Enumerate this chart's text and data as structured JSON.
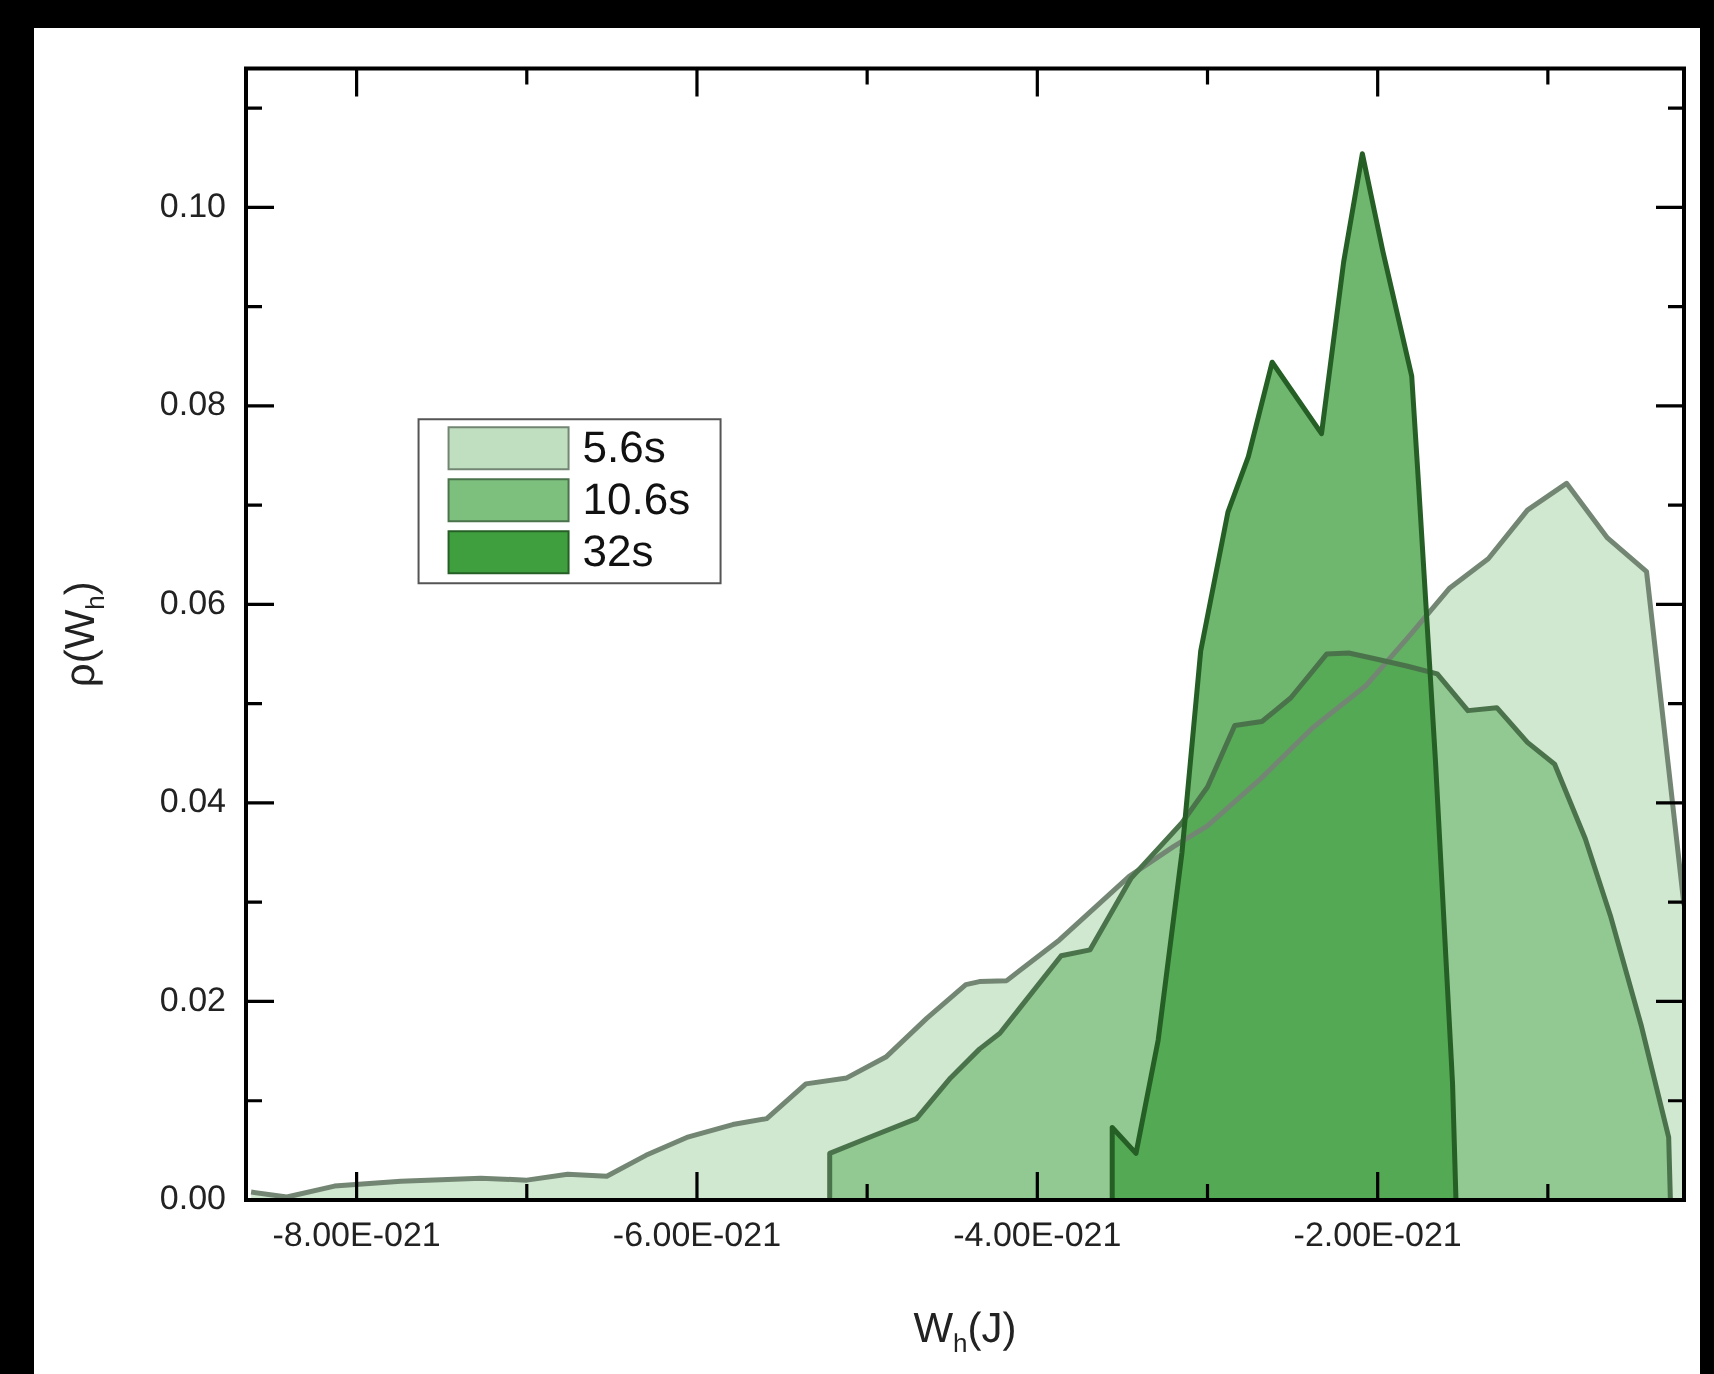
{
  "chart_data": {
    "type": "area",
    "xlabel": "W$_{h}$(J)",
    "ylabel": "ρ(W$_{h}$)",
    "xlim": [
      -8.65e-21,
      -2e-22
    ],
    "ylim": [
      0,
      0.114
    ],
    "xticks": [
      {
        "value": -8e-21,
        "label": "-8.00E-021"
      },
      {
        "value": -7e-21,
        "label": null
      },
      {
        "value": -6e-21,
        "label": "-6.00E-021"
      },
      {
        "value": -5e-21,
        "label": null
      },
      {
        "value": -4e-21,
        "label": "-4.00E-021"
      },
      {
        "value": -3e-21,
        "label": null
      },
      {
        "value": -2e-21,
        "label": "-2.00E-021"
      },
      {
        "value": -1e-21,
        "label": null
      }
    ],
    "yticks": [
      {
        "value": 0,
        "label": "0.00"
      },
      {
        "value": 0.01,
        "label": null
      },
      {
        "value": 0.02,
        "label": "0.02"
      },
      {
        "value": 0.03,
        "label": null
      },
      {
        "value": 0.04,
        "label": "0.04"
      },
      {
        "value": 0.05,
        "label": null
      },
      {
        "value": 0.06,
        "label": "0.06"
      },
      {
        "value": 0.07,
        "label": null
      },
      {
        "value": 0.08,
        "label": "0.08"
      },
      {
        "value": 0.09,
        "label": null
      },
      {
        "value": 0.1,
        "label": "0.10"
      },
      {
        "value": 0.11,
        "label": null
      }
    ],
    "grid": false,
    "legend": "left",
    "marker": "none",
    "line_style": "solid",
    "series": [
      {
        "name": "5.6s",
        "color": "#c0dfc0",
        "x": [
          -8.62e-21,
          -8.41e-21,
          -8.13e-21,
          -7.74e-21,
          -7.27e-21,
          -7e-21,
          -6.76e-21,
          -6.53e-21,
          -6.3e-21,
          -6.06e-21,
          -5.79e-21,
          -5.59e-21,
          -5.36e-21,
          -5.12e-21,
          -4.89e-21,
          -4.65e-21,
          -4.42e-21,
          -4.34e-21,
          -4.18e-21,
          -3.87e-21,
          -3.46e-21,
          -3.2e-21,
          -3e-21,
          -2.69e-21,
          -2.38e-21,
          -2.07e-21,
          -1.81e-21,
          -1.58e-21,
          -1.35e-21,
          -1.12e-21,
          -8.9e-22,
          -6.5e-22,
          -4.2e-22,
          -2e-22
        ],
        "values": [
          0.0008,
          0.0003,
          0.0014,
          0.0019,
          0.0022,
          0.002,
          0.0026,
          0.0024,
          0.0045,
          0.0063,
          0.0076,
          0.0082,
          0.0117,
          0.0123,
          0.0144,
          0.0183,
          0.0217,
          0.022,
          0.0221,
          0.0262,
          0.0326,
          0.0356,
          0.0377,
          0.0424,
          0.0476,
          0.0518,
          0.0569,
          0.0616,
          0.0646,
          0.0695,
          0.0722,
          0.0667,
          0.0633,
          0.0297
        ]
      },
      {
        "name": "10.6s",
        "color": "#7dbf7d",
        "x": [
          -5.22e-21,
          -5.22e-21,
          -4.96e-21,
          -4.71e-21,
          -4.51e-21,
          -4.34e-21,
          -4.22e-21,
          -3.86e-21,
          -3.69e-21,
          -3.45e-21,
          -3.15e-21,
          -3e-21,
          -2.84e-21,
          -2.68e-21,
          -2.51e-21,
          -2.3e-21,
          -2.17e-21,
          -2.01e-21,
          -1.83e-21,
          -1.65e-21,
          -1.47e-21,
          -1.3e-21,
          -1.12e-21,
          -9.6e-22,
          -7.8e-22,
          -6.3e-22,
          -4.5e-22,
          -2.9e-22,
          -2.8e-22
        ],
        "values": [
          0,
          0.0047,
          0.0065,
          0.0082,
          0.0123,
          0.0152,
          0.0168,
          0.0246,
          0.0252,
          0.0324,
          0.038,
          0.0416,
          0.0478,
          0.0482,
          0.0506,
          0.055,
          0.0551,
          0.0545,
          0.0538,
          0.053,
          0.0493,
          0.0496,
          0.0461,
          0.0439,
          0.0364,
          0.0285,
          0.0175,
          0.0063,
          0
        ]
      },
      {
        "name": "32s",
        "color": "#3f9f3f",
        "x": [
          -3.56e-21,
          -3.56e-21,
          -3.42e-21,
          -3.29e-21,
          -3.15e-21,
          -3.04e-21,
          -2.88e-21,
          -2.76e-21,
          -2.62e-21,
          -2.33e-21,
          -2.2e-21,
          -2.09e-21,
          -1.97e-21,
          -1.8e-21,
          -1.76e-21,
          -1.66e-21,
          -1.56e-21,
          -1.54e-21
        ],
        "values": [
          0,
          0.0073,
          0.0047,
          0.0161,
          0.035,
          0.0553,
          0.0693,
          0.0749,
          0.0844,
          0.0772,
          0.0945,
          0.1054,
          0.0956,
          0.083,
          0.0722,
          0.0441,
          0.0117,
          0
        ]
      }
    ]
  }
}
